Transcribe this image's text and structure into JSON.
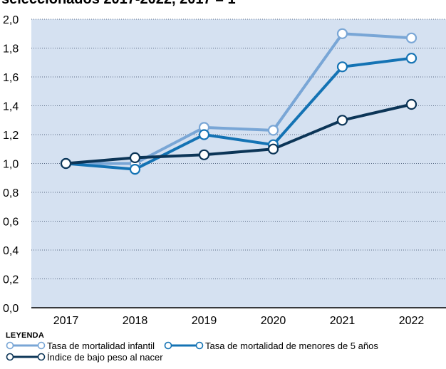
{
  "title_fragment": "seleccionados 2017-2022, 2017 = 1",
  "legend": {
    "title": "LEYENDA"
  },
  "colors": {
    "plot_background": "#d5e1f1",
    "grid": "#5a6b85"
  },
  "chart_data": {
    "type": "line",
    "categories": [
      "2017",
      "2018",
      "2019",
      "2020",
      "2021",
      "2022"
    ],
    "ylim": [
      0,
      2.0
    ],
    "yticks": [
      "0,0",
      "0,2",
      "0,4",
      "0,6",
      "0,8",
      "1,0",
      "1,2",
      "1,4",
      "1,6",
      "1,8",
      "2,0"
    ],
    "grid": "horizontal dotted",
    "legend_position": "bottom",
    "series": [
      {
        "name": "Tasa de mortalidad infantil",
        "color": "#79a6d6",
        "values": [
          1.0,
          1.0,
          1.25,
          1.23,
          1.9,
          1.87
        ]
      },
      {
        "name": "Tasa de mortalidad de menores de 5 años",
        "color": "#1473b4",
        "values": [
          1.0,
          0.96,
          1.2,
          1.13,
          1.67,
          1.73
        ]
      },
      {
        "name": "Índice de bajo peso al nacer",
        "color": "#0c3557",
        "values": [
          1.0,
          1.04,
          1.06,
          1.1,
          1.3,
          1.41
        ]
      }
    ]
  }
}
